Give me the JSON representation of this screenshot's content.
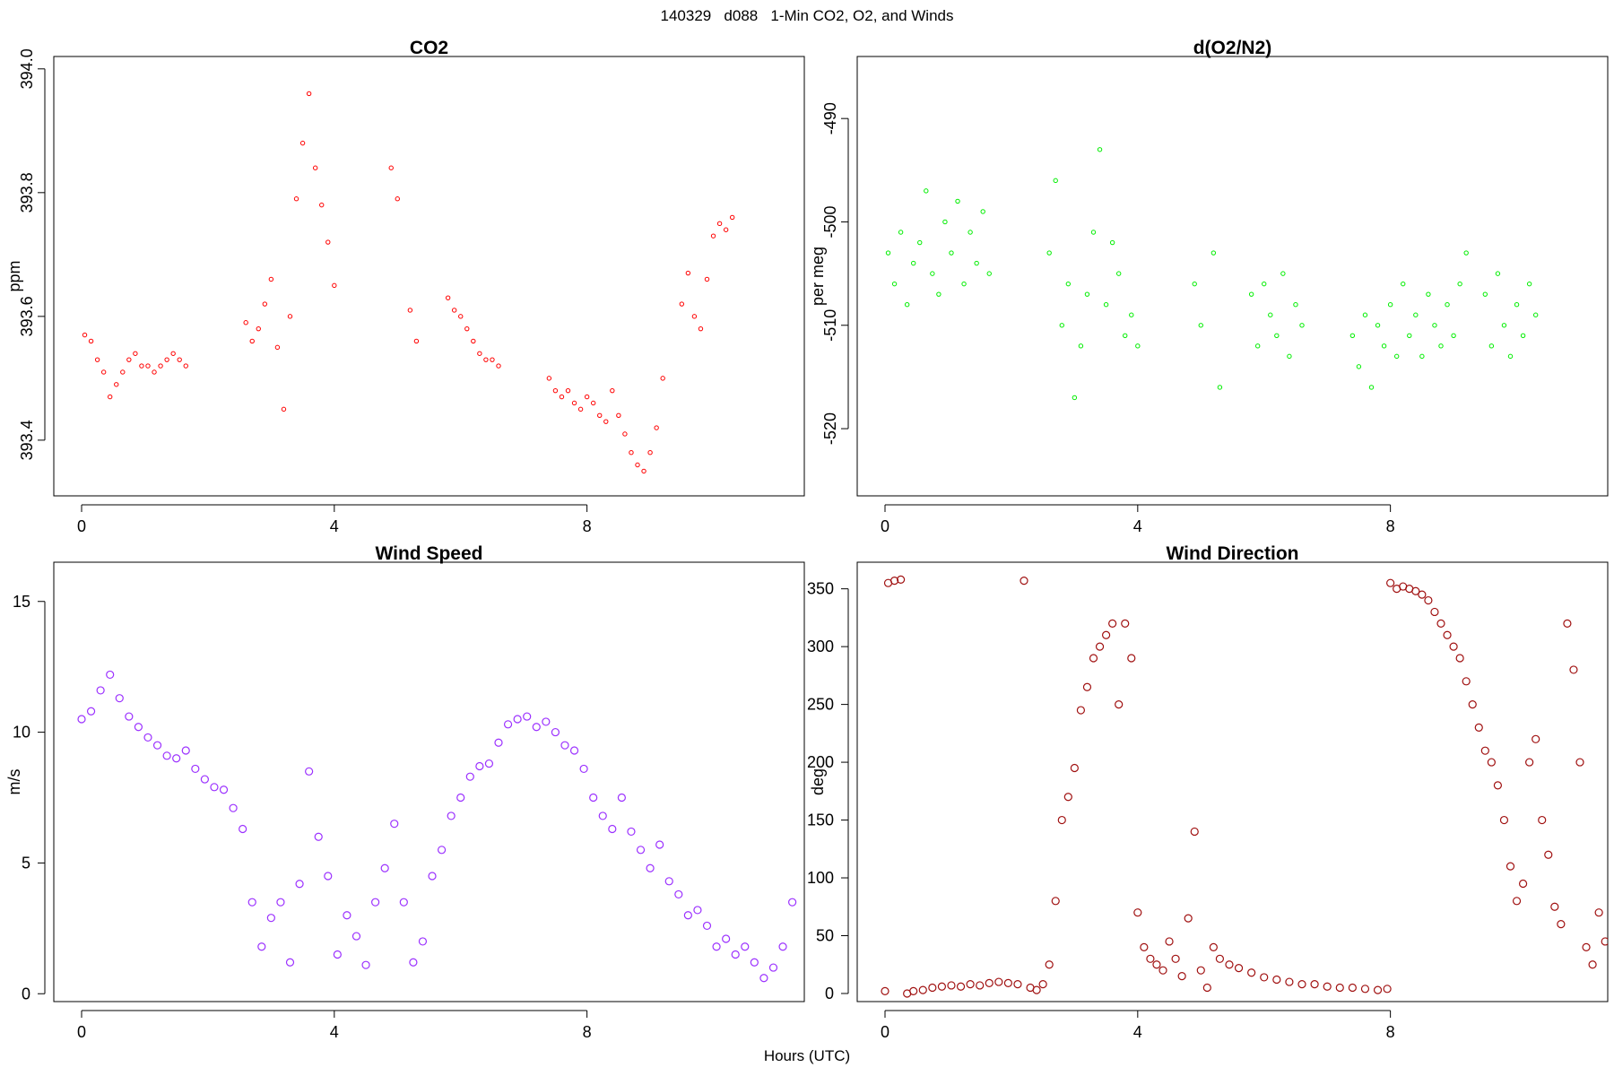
{
  "figure": {
    "title": "140329   d088   1-Min CO2, O2, and Winds",
    "xlabel": "Hours (UTC)"
  },
  "chart_data": [
    {
      "type": "scatter",
      "title": "CO2",
      "xlabel": "",
      "ylabel": "ppm",
      "xlim": [
        -0.44,
        11.44
      ],
      "ylim": [
        393.31,
        394.02
      ],
      "xticks": [
        0,
        4,
        8
      ],
      "yticks": [
        393.4,
        393.6,
        393.8,
        394.0
      ],
      "grid": false,
      "legend": "none",
      "color": "#ff0000",
      "marker": "small-open-circle",
      "series": [
        {
          "x": [
            0.05,
            0.15,
            0.25,
            0.35,
            0.45,
            0.55,
            0.65,
            0.75,
            0.85,
            0.95,
            1.05,
            1.15,
            1.25,
            1.35,
            1.45,
            1.55,
            1.65,
            2.6,
            2.7,
            2.8,
            2.9,
            3.0,
            3.1,
            3.2,
            3.3,
            3.4,
            3.5,
            3.6,
            3.7,
            3.8,
            3.9,
            4.0,
            4.9,
            5.0,
            5.2,
            5.3,
            5.8,
            5.9,
            6.0,
            6.1,
            6.2,
            6.3,
            6.4,
            6.5,
            6.6,
            7.4,
            7.5,
            7.6,
            7.7,
            7.8,
            7.9,
            8.0,
            8.1,
            8.2,
            8.3,
            8.4,
            8.5,
            8.6,
            8.7,
            8.8,
            8.9,
            9.0,
            9.1,
            9.2,
            9.5,
            9.6,
            9.7,
            9.8,
            9.9,
            10.0,
            10.1,
            10.2,
            10.3
          ],
          "y": [
            393.57,
            393.56,
            393.53,
            393.51,
            393.47,
            393.49,
            393.51,
            393.53,
            393.54,
            393.52,
            393.52,
            393.51,
            393.52,
            393.53,
            393.54,
            393.53,
            393.52,
            393.59,
            393.56,
            393.58,
            393.62,
            393.66,
            393.55,
            393.45,
            393.6,
            393.79,
            393.88,
            393.96,
            393.84,
            393.78,
            393.72,
            393.65,
            393.84,
            393.79,
            393.61,
            393.56,
            393.63,
            393.61,
            393.6,
            393.58,
            393.56,
            393.54,
            393.53,
            393.53,
            393.52,
            393.5,
            393.48,
            393.47,
            393.48,
            393.46,
            393.45,
            393.47,
            393.46,
            393.44,
            393.43,
            393.48,
            393.44,
            393.41,
            393.38,
            393.36,
            393.35,
            393.38,
            393.42,
            393.5,
            393.62,
            393.67,
            393.6,
            393.58,
            393.66,
            393.73,
            393.75,
            393.74,
            393.76
          ]
        }
      ]
    },
    {
      "type": "scatter",
      "title": "d(O2/N2)",
      "xlabel": "",
      "ylabel": "per meg",
      "xlim": [
        -0.44,
        11.44
      ],
      "ylim": [
        -526.5,
        -484
      ],
      "xticks": [
        0,
        4,
        8
      ],
      "yticks": [
        -520,
        -510,
        -500,
        -490
      ],
      "grid": false,
      "legend": "none",
      "color": "#00ee00",
      "marker": "small-open-circle",
      "series": [
        {
          "x": [
            0.05,
            0.15,
            0.25,
            0.35,
            0.45,
            0.55,
            0.65,
            0.75,
            0.85,
            0.95,
            1.05,
            1.15,
            1.25,
            1.35,
            1.45,
            1.55,
            1.65,
            2.6,
            2.7,
            2.8,
            2.9,
            3.0,
            3.1,
            3.2,
            3.3,
            3.4,
            3.5,
            3.6,
            3.7,
            3.8,
            3.9,
            4.0,
            4.9,
            5.0,
            5.2,
            5.3,
            5.8,
            5.9,
            6.0,
            6.1,
            6.2,
            6.3,
            6.4,
            6.5,
            6.6,
            7.4,
            7.5,
            7.6,
            7.7,
            7.8,
            7.9,
            8.0,
            8.1,
            8.2,
            8.3,
            8.4,
            8.5,
            8.6,
            8.7,
            8.8,
            8.9,
            9.0,
            9.1,
            9.2,
            9.5,
            9.6,
            9.7,
            9.8,
            9.9,
            10.0,
            10.1,
            10.2,
            10.3
          ],
          "y": [
            -503,
            -506,
            -501,
            -508,
            -504,
            -502,
            -497,
            -505,
            -507,
            -500,
            -503,
            -498,
            -506,
            -501,
            -504,
            -499,
            -505,
            -503,
            -496,
            -510,
            -506,
            -517,
            -512,
            -507,
            -501,
            -493,
            -508,
            -502,
            -505,
            -511,
            -509,
            -512,
            -506,
            -510,
            -503,
            -516,
            -507,
            -512,
            -506,
            -509,
            -511,
            -505,
            -513,
            -508,
            -510,
            -511,
            -514,
            -509,
            -516,
            -510,
            -512,
            -508,
            -513,
            -506,
            -511,
            -509,
            -513,
            -507,
            -510,
            -512,
            -508,
            -511,
            -506,
            -503,
            -507,
            -512,
            -505,
            -510,
            -513,
            -508,
            -511,
            -506,
            -509
          ]
        }
      ]
    },
    {
      "type": "scatter",
      "title": "Wind Speed",
      "xlabel": "",
      "ylabel": "m/s",
      "xlim": [
        -0.44,
        11.44
      ],
      "ylim": [
        -0.3,
        16.5
      ],
      "xticks": [
        0,
        4,
        8
      ],
      "yticks": [
        0,
        5,
        10,
        15
      ],
      "grid": false,
      "legend": "none",
      "color": "#9b30ff",
      "marker": "open-circle",
      "series": [
        {
          "x": [
            0.0,
            0.15,
            0.3,
            0.45,
            0.6,
            0.75,
            0.9,
            1.05,
            1.2,
            1.35,
            1.5,
            1.65,
            1.8,
            1.95,
            2.1,
            2.25,
            2.4,
            2.55,
            2.7,
            2.85,
            3.0,
            3.15,
            3.3,
            3.45,
            3.6,
            3.75,
            3.9,
            4.05,
            4.2,
            4.35,
            4.5,
            4.65,
            4.8,
            4.95,
            5.1,
            5.25,
            5.4,
            5.55,
            5.7,
            5.85,
            6.0,
            6.15,
            6.3,
            6.45,
            6.6,
            6.75,
            6.9,
            7.05,
            7.2,
            7.35,
            7.5,
            7.65,
            7.8,
            7.95,
            8.1,
            8.25,
            8.4,
            8.55,
            8.7,
            8.85,
            9.0,
            9.15,
            9.3,
            9.45,
            9.6,
            9.75,
            9.9,
            10.05,
            10.2,
            10.35,
            10.5,
            10.65,
            10.8,
            10.95,
            11.1,
            11.25
          ],
          "y": [
            10.5,
            10.8,
            11.6,
            12.2,
            11.3,
            10.6,
            10.2,
            9.8,
            9.5,
            9.1,
            9.0,
            9.3,
            8.6,
            8.2,
            7.9,
            7.8,
            7.1,
            6.3,
            3.5,
            1.8,
            2.9,
            3.5,
            1.2,
            4.2,
            8.5,
            6.0,
            4.5,
            1.5,
            3.0,
            2.2,
            1.1,
            3.5,
            4.8,
            6.5,
            3.5,
            1.2,
            2.0,
            4.5,
            5.5,
            6.8,
            7.5,
            8.3,
            8.7,
            8.8,
            9.6,
            10.3,
            10.5,
            10.6,
            10.2,
            10.4,
            10.0,
            9.5,
            9.3,
            8.6,
            7.5,
            6.8,
            6.3,
            7.5,
            6.2,
            5.5,
            4.8,
            5.7,
            4.3,
            3.8,
            3.0,
            3.2,
            2.6,
            1.8,
            2.1,
            1.5,
            1.8,
            1.2,
            0.6,
            1.0,
            1.8,
            3.5
          ]
        }
      ]
    },
    {
      "type": "scatter",
      "title": "Wind Direction",
      "xlabel": "",
      "ylabel": "deg",
      "xlim": [
        -0.44,
        11.44
      ],
      "ylim": [
        -7,
        373
      ],
      "xticks": [
        0,
        4,
        8
      ],
      "yticks": [
        0,
        50,
        100,
        150,
        200,
        250,
        300,
        350
      ],
      "grid": false,
      "legend": "none",
      "color": "#a01010",
      "marker": "open-circle",
      "series": [
        {
          "x": [
            0.0,
            0.05,
            0.15,
            0.25,
            0.35,
            0.45,
            0.6,
            0.75,
            0.9,
            1.05,
            1.2,
            1.35,
            1.5,
            1.65,
            1.8,
            1.95,
            2.1,
            2.2,
            2.3,
            2.4,
            2.5,
            2.6,
            2.7,
            2.8,
            2.9,
            3.0,
            3.1,
            3.2,
            3.3,
            3.4,
            3.5,
            3.6,
            3.7,
            3.8,
            3.9,
            4.0,
            4.1,
            4.2,
            4.3,
            4.4,
            4.5,
            4.6,
            4.7,
            4.8,
            4.9,
            5.0,
            5.1,
            5.2,
            5.3,
            5.45,
            5.6,
            5.8,
            6.0,
            6.2,
            6.4,
            6.6,
            6.8,
            7.0,
            7.2,
            7.4,
            7.6,
            7.8,
            7.95,
            8.0,
            8.1,
            8.2,
            8.3,
            8.4,
            8.5,
            8.6,
            8.7,
            8.8,
            8.9,
            9.0,
            9.1,
            9.2,
            9.3,
            9.4,
            9.5,
            9.6,
            9.7,
            9.8,
            9.9,
            10.0,
            10.1,
            10.2,
            10.3,
            10.4,
            10.5,
            10.6,
            10.7,
            10.8,
            10.9,
            11.0,
            11.1,
            11.2,
            11.3,
            11.4
          ],
          "y": [
            2,
            355,
            357,
            358,
            0,
            2,
            3,
            5,
            6,
            7,
            6,
            8,
            7,
            9,
            10,
            9,
            8,
            357,
            5,
            3,
            8,
            25,
            80,
            150,
            170,
            195,
            245,
            265,
            290,
            300,
            310,
            320,
            250,
            320,
            290,
            70,
            40,
            30,
            25,
            20,
            45,
            30,
            15,
            65,
            140,
            20,
            5,
            40,
            30,
            25,
            22,
            18,
            14,
            12,
            10,
            8,
            8,
            6,
            5,
            5,
            4,
            3,
            4,
            355,
            350,
            352,
            350,
            348,
            345,
            340,
            330,
            320,
            310,
            300,
            290,
            270,
            250,
            230,
            210,
            200,
            180,
            150,
            110,
            80,
            95,
            200,
            220,
            150,
            120,
            75,
            60,
            320,
            280,
            200,
            40,
            25,
            70,
            45
          ]
        }
      ]
    }
  ]
}
